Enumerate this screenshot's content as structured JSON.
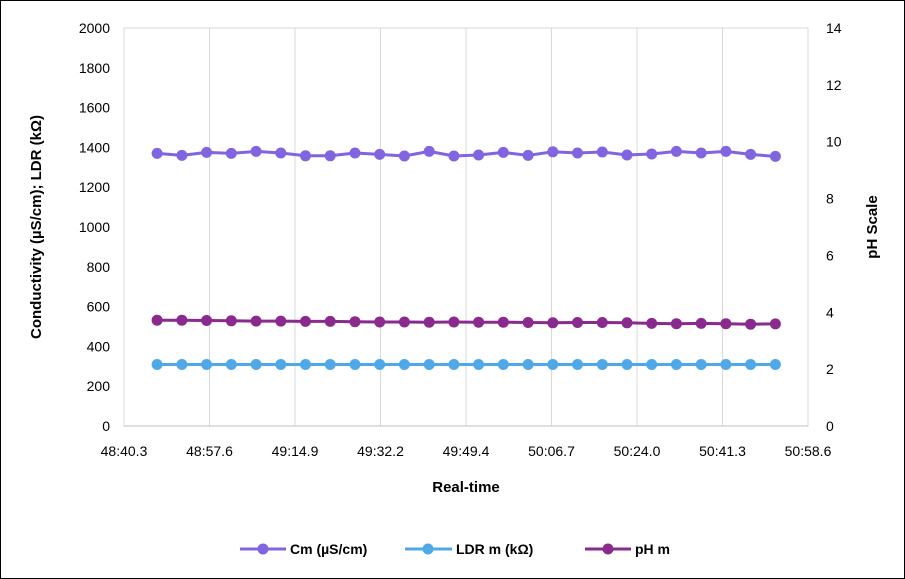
{
  "chart_data": {
    "type": "line",
    "title": "",
    "xlabel": "Real-time",
    "ylabel": "Conductivity (µS/cm); LDR (kΩ)",
    "y2label": "pH Scale",
    "x_tick_labels": [
      "48:40.3",
      "48:57.6",
      "49:14.9",
      "49:32.2",
      "49:49.4",
      "50:06.7",
      "50:24.0",
      "50:41.3",
      "50:58.6"
    ],
    "xlim": [
      "48:40.3",
      "50:58.6"
    ],
    "ylim": [
      0,
      2000
    ],
    "y_ticks": [
      0,
      200,
      400,
      600,
      800,
      1000,
      1200,
      1400,
      1600,
      1800,
      2000
    ],
    "y2lim": [
      0,
      14
    ],
    "y2_ticks": [
      0,
      2,
      4,
      6,
      8,
      10,
      12,
      14
    ],
    "grid": "vertical",
    "legend_position": "bottom",
    "x": [
      "48:47",
      "48:52",
      "48:57",
      "49:02",
      "49:07",
      "49:12",
      "49:17",
      "49:22",
      "49:27",
      "49:32",
      "49:37",
      "49:42",
      "49:47",
      "49:52",
      "49:57",
      "50:02",
      "50:07",
      "50:12",
      "50:17",
      "50:22",
      "50:27",
      "50:32",
      "50:37",
      "50:42",
      "50:47",
      "50:52"
    ],
    "series": [
      {
        "name": "Cm (µS/cm)",
        "axis": "left",
        "color": "#8064E0",
        "values": [
          1370,
          1360,
          1375,
          1370,
          1380,
          1372,
          1358,
          1358,
          1372,
          1365,
          1357,
          1380,
          1357,
          1362,
          1375,
          1360,
          1378,
          1372,
          1377,
          1362,
          1367,
          1380,
          1372,
          1380,
          1365,
          1355
        ]
      },
      {
        "name": "LDR m (kΩ)",
        "axis": "left",
        "color": "#4FA9E8",
        "values": [
          309,
          309,
          309,
          309,
          309,
          309,
          309,
          309,
          309,
          309,
          309,
          309,
          309,
          309,
          309,
          309,
          309,
          309,
          309,
          309,
          309,
          309,
          309,
          309,
          309,
          309
        ]
      },
      {
        "name": "pH m",
        "axis": "right",
        "color": "#8A2A8F",
        "values": [
          3.72,
          3.72,
          3.71,
          3.7,
          3.69,
          3.69,
          3.68,
          3.68,
          3.67,
          3.66,
          3.66,
          3.65,
          3.66,
          3.65,
          3.65,
          3.64,
          3.63,
          3.64,
          3.64,
          3.63,
          3.61,
          3.6,
          3.61,
          3.6,
          3.58,
          3.59
        ]
      }
    ]
  }
}
